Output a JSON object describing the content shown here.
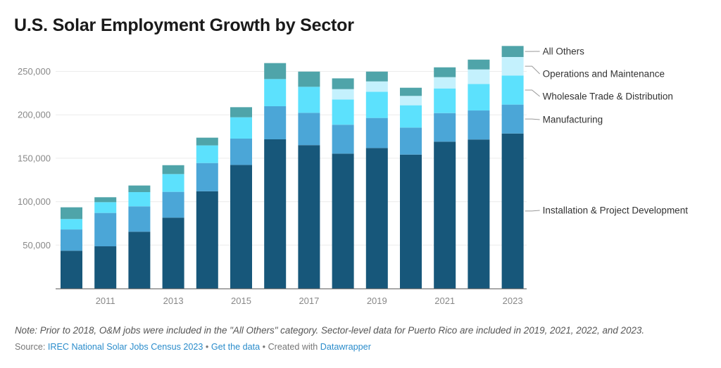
{
  "chart_data": {
    "type": "bar",
    "stacked": true,
    "title": "U.S. Solar Employment Growth by Sector",
    "xlabel": "",
    "ylabel": "",
    "ylim": [
      0,
      280000
    ],
    "yticks": [
      50000,
      100000,
      150000,
      200000,
      250000
    ],
    "ytick_labels": [
      "50,000",
      "100,000",
      "150,000",
      "200,000",
      "250,000"
    ],
    "grid": true,
    "legend": "right-inline-labels",
    "categories": [
      "2010",
      "2011",
      "2012",
      "2013",
      "2014",
      "2015",
      "2016",
      "2017",
      "2018",
      "2019",
      "2020",
      "2021",
      "2022",
      "2023"
    ],
    "xtick_labels": [
      "2011",
      "2013",
      "2015",
      "2017",
      "2019",
      "2021",
      "2023"
    ],
    "series": [
      {
        "name": "Installation & Project Development",
        "color": "#17577a",
        "values": [
          43500,
          48600,
          65400,
          81600,
          112000,
          142300,
          171800,
          165100,
          155300,
          161800,
          154200,
          169100,
          171600,
          178500
        ]
      },
      {
        "name": "Manufacturing",
        "color": "#4ba6d7",
        "values": [
          24500,
          38400,
          29200,
          29700,
          32500,
          30300,
          38100,
          37200,
          33300,
          34600,
          31100,
          32900,
          33400,
          33300
        ]
      },
      {
        "name": "Wholesale Trade & Distribution",
        "color": "#5ce1fd",
        "values": [
          12000,
          12400,
          16400,
          20500,
          20300,
          24600,
          31300,
          30000,
          29100,
          30200,
          25700,
          28400,
          30600,
          33500
        ]
      },
      {
        "name": "Operations and Maintenance",
        "color": "#c4f1fd",
        "values": [
          0,
          0,
          0,
          0,
          0,
          0,
          0,
          0,
          11900,
          11900,
          10800,
          13000,
          16700,
          21300
        ]
      },
      {
        "name": "All Others",
        "color": "#4fa4a9",
        "values": [
          13500,
          5700,
          7600,
          10200,
          8900,
          11600,
          18400,
          17500,
          12400,
          11300,
          9400,
          11300,
          11300,
          12700
        ]
      }
    ]
  },
  "footer": {
    "note": "Note: Prior to 2018, O&M jobs were included in the \"All Others\" category. Sector-level data for Puerto Rico are included in 2019, 2021, 2022, and 2023.",
    "source_prefix": "Source: ",
    "source_link": "IREC National Solar Jobs Census 2023",
    "sep1": " • ",
    "get_data": "Get the data",
    "sep2": " • Created with ",
    "datawrapper": "Datawrapper"
  }
}
